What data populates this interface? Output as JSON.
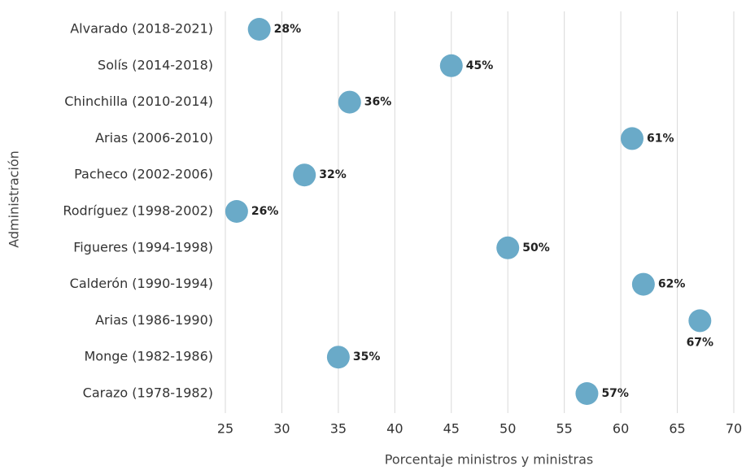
{
  "chart_data": {
    "type": "dot",
    "categories": [
      "Alvarado (2018-2021)",
      "Solís (2014-2018)",
      "Chinchilla (2010-2014)",
      "Arias (2006-2010)",
      "Pacheco (2002-2006)",
      "Rodríguez (1998-2002)",
      "Figueres (1994-1998)",
      "Calderón (1990-1994)",
      "Arias (1986-1990)",
      "Monge (1982-1986)",
      "Carazo (1978-1982)"
    ],
    "values": [
      28,
      45,
      36,
      61,
      32,
      26,
      50,
      62,
      67,
      35,
      57
    ],
    "value_labels": [
      "28%",
      "45%",
      "36%",
      "61%",
      "32%",
      "26%",
      "50%",
      "62%",
      "67%",
      "35%",
      "57%"
    ],
    "color": "#6aaac8",
    "xlim": [
      25,
      70
    ],
    "xticks": [
      25,
      30,
      35,
      40,
      45,
      50,
      55,
      60,
      65,
      70
    ],
    "grid": true,
    "x_label": "Porcentaje ministros y ministras",
    "y_label": "Administración"
  }
}
